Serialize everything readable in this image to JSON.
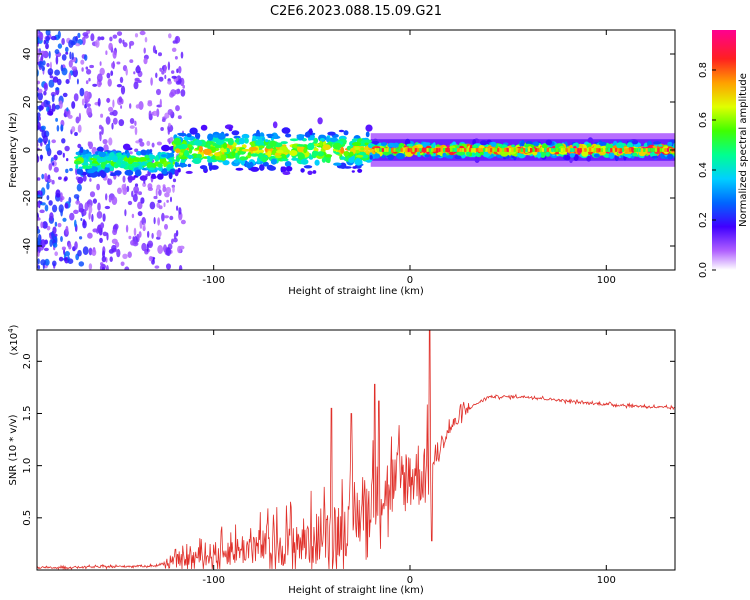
{
  "title": "C2E6.2023.088.15.09.G21",
  "colorbar": {
    "label": "Normalized spectral amplitude",
    "ticks": [
      "0.0",
      "0.2",
      "0.4",
      "0.6",
      "0.8"
    ],
    "range": [
      0,
      0.96
    ]
  },
  "chart_data": [
    {
      "type": "heatmap",
      "name": "spectrogram",
      "xlabel": "Height of straight line (km)",
      "ylabel": "Frequency (Hz)",
      "xlim": [
        -190,
        135
      ],
      "ylim": [
        -50,
        50
      ],
      "xticks": [
        "-100",
        "0",
        "100"
      ],
      "yticks": [
        "-40",
        "-20",
        "0",
        "20",
        "40"
      ],
      "description_of_bands": [
        {
          "x": [
            -170,
            -120
          ],
          "freq_center": -5,
          "spread": 6,
          "amp_peak": 0.5
        },
        {
          "x": [
            -120,
            -20
          ],
          "freq_center": 0,
          "spread": 8,
          "amp_peak": 0.65
        },
        {
          "x": [
            -20,
            135
          ],
          "freq_center": 0,
          "spread": 3,
          "amp_peak": 0.9
        }
      ]
    },
    {
      "type": "line",
      "name": "snr",
      "xlabel": "Height of straight line (km)",
      "ylabel": "SNR (10 * v/v)",
      "multiplier_label": "(x10",
      "multiplier_exp": "4",
      "xlim": [
        -190,
        135
      ],
      "ylim": [
        0,
        2.3
      ],
      "xticks": [
        "-100",
        "0",
        "100"
      ],
      "yticks": [
        "0.5",
        "1.0",
        "1.5",
        "2.0"
      ],
      "color": "#e0302a",
      "anchors": [
        {
          "x": -190,
          "y": 0.02
        },
        {
          "x": -130,
          "y": 0.04
        },
        {
          "x": -110,
          "y": 0.12
        },
        {
          "x": -80,
          "y": 0.22
        },
        {
          "x": -50,
          "y": 0.28
        },
        {
          "x": -30,
          "y": 0.45
        },
        {
          "x": -20,
          "y": 0.65
        },
        {
          "x": -10,
          "y": 0.8
        },
        {
          "x": 0,
          "y": 0.9
        },
        {
          "x": 10,
          "y": 0.95
        },
        {
          "x": 20,
          "y": 1.35
        },
        {
          "x": 30,
          "y": 1.55
        },
        {
          "x": 40,
          "y": 1.66
        },
        {
          "x": 60,
          "y": 1.66
        },
        {
          "x": 90,
          "y": 1.6
        },
        {
          "x": 135,
          "y": 1.55
        }
      ],
      "peaks": [
        {
          "x": -40,
          "y": 1.55
        },
        {
          "x": -30,
          "y": 1.5
        },
        {
          "x": -18,
          "y": 1.78
        },
        {
          "x": -16,
          "y": 1.62
        },
        {
          "x": 10,
          "y": 2.3
        },
        {
          "x": 11,
          "y": 0.28
        }
      ]
    }
  ]
}
